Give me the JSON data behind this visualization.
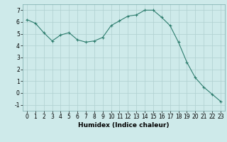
{
  "x": [
    0,
    1,
    2,
    3,
    4,
    5,
    6,
    7,
    8,
    9,
    10,
    11,
    12,
    13,
    14,
    15,
    16,
    17,
    18,
    19,
    20,
    21,
    22,
    23
  ],
  "y": [
    6.2,
    5.9,
    5.1,
    4.4,
    4.9,
    5.1,
    4.5,
    4.3,
    4.4,
    4.7,
    5.7,
    6.1,
    6.5,
    6.6,
    7.0,
    7.0,
    6.4,
    5.7,
    4.3,
    2.6,
    1.3,
    0.5,
    -0.1,
    -0.7
  ],
  "line_color": "#2e7d6e",
  "marker_color": "#2e7d6e",
  "bg_color": "#ceeaea",
  "grid_color": "#afd0d0",
  "xlabel": "Humidex (Indice chaleur)",
  "xlim": [
    -0.5,
    23.5
  ],
  "ylim": [
    -1.5,
    7.5
  ],
  "yticks": [
    -1,
    0,
    1,
    2,
    3,
    4,
    5,
    6,
    7
  ],
  "xticks": [
    0,
    1,
    2,
    3,
    4,
    5,
    6,
    7,
    8,
    9,
    10,
    11,
    12,
    13,
    14,
    15,
    16,
    17,
    18,
    19,
    20,
    21,
    22,
    23
  ],
  "label_fontsize": 6.5,
  "tick_fontsize": 5.5
}
